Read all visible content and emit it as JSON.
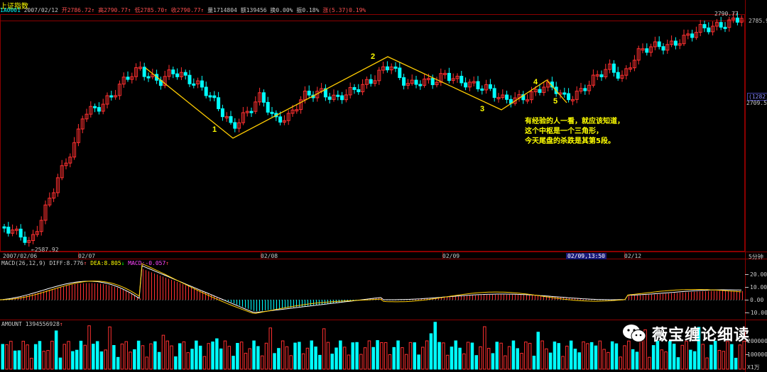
{
  "header": {
    "title": "上证指数",
    "code": "1A0001",
    "date": "2007/02/12",
    "fields": [
      {
        "label": "开",
        "value": "2786.72",
        "color": "#ff5050"
      },
      {
        "label": "高",
        "value": "2790.77",
        "color": "#ff5050"
      },
      {
        "label": "低",
        "value": "2785.70",
        "color": "#ff5050"
      },
      {
        "label": "收",
        "value": "2790.77",
        "color": "#ff5050"
      },
      {
        "label": "量",
        "value": "1714804",
        "color": "#c8c8c8"
      },
      {
        "label": "额",
        "value": "139456",
        "color": "#c8c8c8"
      },
      {
        "label": "换",
        "value": "0.00%",
        "color": "#c8c8c8"
      },
      {
        "label": "振",
        "value": "0.18%",
        "color": "#c8c8c8"
      },
      {
        "label": "涨",
        "value": "(5.37)0.19%",
        "color": "#ff5050"
      }
    ]
  },
  "price_axis": {
    "high_label": "2790.77",
    "right_top": "2785.9",
    "right_mid_badge": "1282",
    "right_mid_value": "2709.53",
    "low_label": "2587.92"
  },
  "time_axis": {
    "labels": [
      "2007/02/06",
      "02/07",
      "02/08",
      "02/09",
      "02/12"
    ],
    "cursor": "02/09,13:50",
    "period": "5分钟"
  },
  "macd": {
    "title": "MACD(26,12,9)",
    "diff": "DIFF:8.776",
    "dea": "DEA:8.805",
    "macd": "MACD:-0.057",
    "ticks": [
      "20.00",
      "10.00",
      "0.00",
      "-10.00"
    ]
  },
  "amount": {
    "title": "AMOUNT 1394556928",
    "ticks": [
      "200000",
      "100000"
    ],
    "unit": "X1万"
  },
  "wave_labels": [
    "1",
    "2",
    "3",
    "4",
    "5"
  ],
  "annotation": [
    "有经验的人一看，就应该知道，",
    "这个中枢是一个三角形，",
    "今天尾盘的杀跌是其第5段。"
  ],
  "watermark": "薇宝缠论细读",
  "colors": {
    "up": "#ff3030",
    "down": "#00ffff",
    "line": "#ffcc00",
    "grid": "#8b0000"
  }
}
